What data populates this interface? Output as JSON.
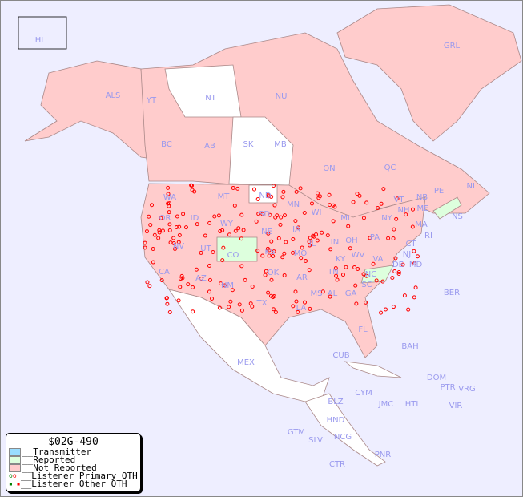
{
  "legend": {
    "title": "$02G-490",
    "items": [
      {
        "label": "__Transmitter",
        "color": "#99ddff"
      },
      {
        "label": "__Reported",
        "color": "#ddffdd"
      },
      {
        "label": "__Not Reported",
        "color": "#ffcccc"
      },
      {
        "label": "__Listener Primary QTH",
        "color": "#ff0000"
      },
      {
        "label": "__Listener Other QTH",
        "color": "#ff0000"
      }
    ]
  },
  "region_labels": [
    "HI",
    "ALS",
    "YT",
    "NT",
    "NU",
    "GRL",
    "BC",
    "AB",
    "SK",
    "MB",
    "ON",
    "QC",
    "NL",
    "NS",
    "PE",
    "NB",
    "WA",
    "OR",
    "ID",
    "MT",
    "WY",
    "ND",
    "SD",
    "MN",
    "WI",
    "MI",
    "NY",
    "VT",
    "NH",
    "ME",
    "MA",
    "RI",
    "CT",
    "NJ",
    "PA",
    "OH",
    "IN",
    "IL",
    "IA",
    "NE",
    "CO",
    "UT",
    "NV",
    "CA",
    "AZ",
    "NM",
    "KS",
    "MO",
    "KY",
    "WV",
    "VA",
    "MD",
    "DE",
    "NC",
    "TN",
    "OK",
    "AR",
    "TX",
    "LA",
    "MS",
    "AL",
    "GA",
    "SC",
    "FL",
    "BER",
    "BAH",
    "CUB",
    "MEX",
    "CYM",
    "JMC",
    "HTI",
    "DOM",
    "PTR",
    "VRG",
    "VIR",
    "BLZ",
    "HND",
    "GTM",
    "SLV",
    "NCG",
    "CTR",
    "PNR"
  ],
  "colors": {
    "background": "#eeeeff",
    "not_reported": "#ffcccc",
    "reported": "#ddffdd",
    "none": "#ffffff"
  }
}
